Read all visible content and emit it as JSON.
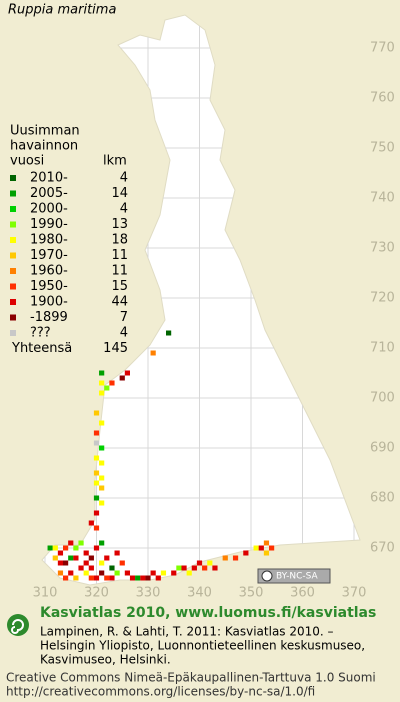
{
  "title": "Ruppia maritima",
  "legend": {
    "heading": [
      "Uusimman",
      "havainnon",
      "vuosi"
    ],
    "count_heading": "lkm",
    "rows": [
      {
        "label": "2010-",
        "count": 4,
        "color": "#006400"
      },
      {
        "label": "2005-",
        "count": 14,
        "color": "#00a000"
      },
      {
        "label": "2000-",
        "count": 4,
        "color": "#00d000"
      },
      {
        "label": "1990-",
        "count": 13,
        "color": "#80ff00"
      },
      {
        "label": "1980-",
        "count": 18,
        "color": "#ffff00"
      },
      {
        "label": "1970-",
        "count": 11,
        "color": "#ffc800"
      },
      {
        "label": "1960-",
        "count": 11,
        "color": "#ff8000"
      },
      {
        "label": "1950-",
        "count": 15,
        "color": "#ff3000"
      },
      {
        "label": "1900-",
        "count": 44,
        "color": "#dd0000"
      },
      {
        "label": "-1899",
        "count": 7,
        "color": "#8b0000"
      },
      {
        "label": "???",
        "count": 4,
        "color": "#c8c8c8"
      }
    ],
    "total_label": "Yhteensä",
    "total": 145
  },
  "map": {
    "xticks": [
      310,
      320,
      330,
      340,
      350,
      360,
      370
    ],
    "yticks": [
      670,
      680,
      690,
      700,
      710,
      720,
      730,
      740,
      750,
      760,
      770
    ],
    "occurrences": [
      [
        334,
        713,
        0
      ],
      [
        331,
        709,
        6
      ],
      [
        321,
        705,
        1
      ],
      [
        321,
        703,
        4
      ],
      [
        322,
        702,
        3
      ],
      [
        323,
        703,
        7
      ],
      [
        325,
        704,
        9
      ],
      [
        326,
        705,
        8
      ],
      [
        321,
        701,
        4
      ],
      [
        320,
        697,
        5
      ],
      [
        321,
        695,
        4
      ],
      [
        320,
        693,
        7
      ],
      [
        320,
        691,
        10
      ],
      [
        321,
        690,
        2
      ],
      [
        320,
        688,
        4
      ],
      [
        321,
        687,
        4
      ],
      [
        320,
        685,
        5
      ],
      [
        321,
        684,
        4
      ],
      [
        320,
        683,
        4
      ],
      [
        321,
        682,
        5
      ],
      [
        320,
        680,
        1
      ],
      [
        321,
        679,
        4
      ],
      [
        320,
        677,
        8
      ],
      [
        319,
        675,
        8
      ],
      [
        320,
        674,
        7
      ],
      [
        311,
        670,
        1
      ],
      [
        312,
        670,
        4
      ],
      [
        313,
        669,
        8
      ],
      [
        314,
        670,
        7
      ],
      [
        315,
        671,
        8
      ],
      [
        316,
        670,
        3
      ],
      [
        312,
        668,
        5
      ],
      [
        313,
        667,
        8
      ],
      [
        314,
        667,
        9
      ],
      [
        315,
        668,
        1
      ],
      [
        316,
        668,
        8
      ],
      [
        313,
        665,
        6
      ],
      [
        314,
        664,
        7
      ],
      [
        317,
        666,
        8
      ],
      [
        318,
        665,
        4
      ],
      [
        318,
        667,
        8
      ],
      [
        318,
        669,
        8
      ],
      [
        319,
        668,
        9
      ],
      [
        319,
        666,
        8
      ],
      [
        319,
        664,
        7
      ],
      [
        320,
        664,
        8
      ],
      [
        321,
        667,
        4
      ],
      [
        322,
        668,
        8
      ],
      [
        323,
        666,
        0
      ],
      [
        323,
        664,
        8
      ],
      [
        324,
        665,
        3
      ],
      [
        324,
        669,
        8
      ],
      [
        325,
        667,
        7
      ],
      [
        321,
        665,
        9
      ],
      [
        322,
        664,
        7
      ],
      [
        316,
        664,
        5
      ],
      [
        315,
        665,
        8
      ],
      [
        317,
        671,
        3
      ],
      [
        320,
        670,
        8
      ],
      [
        321,
        671,
        1
      ],
      [
        326,
        665,
        8
      ],
      [
        327,
        664,
        8
      ],
      [
        328,
        664,
        1
      ],
      [
        329,
        664,
        8
      ],
      [
        330,
        664,
        9
      ],
      [
        331,
        665,
        8
      ],
      [
        332,
        664,
        8
      ],
      [
        333,
        665,
        4
      ],
      [
        335,
        665,
        8
      ],
      [
        336,
        666,
        3
      ],
      [
        337,
        666,
        8
      ],
      [
        338,
        665,
        4
      ],
      [
        339,
        666,
        8
      ],
      [
        340,
        667,
        8
      ],
      [
        341,
        666,
        7
      ],
      [
        342,
        667,
        4
      ],
      [
        343,
        666,
        8
      ],
      [
        345,
        668,
        6
      ],
      [
        347,
        668,
        7
      ],
      [
        351,
        670,
        4
      ],
      [
        352,
        670,
        8
      ],
      [
        353,
        669,
        5
      ],
      [
        354,
        670,
        7
      ],
      [
        353,
        671,
        6
      ],
      [
        349,
        669,
        8
      ]
    ]
  },
  "badge": "BY-NC-SA",
  "footer": {
    "headline": "Kasviatlas 2010, www.luomus.fi/kasviatlas",
    "citation": [
      "Lampinen, R. & Lahti, T. 2011: Kasviatlas 2010. –",
      "Helsingin Yliopisto, Luonnontieteellinen keskusmuseo,",
      "Kasvimuseo, Helsinki."
    ],
    "license": [
      "Creative Commons Nimeä-Epäkaupallinen-Tarttuva 1.0 Suomi",
      "http://creativecommons.org/licenses/by-nc-sa/1.0/fi"
    ]
  }
}
